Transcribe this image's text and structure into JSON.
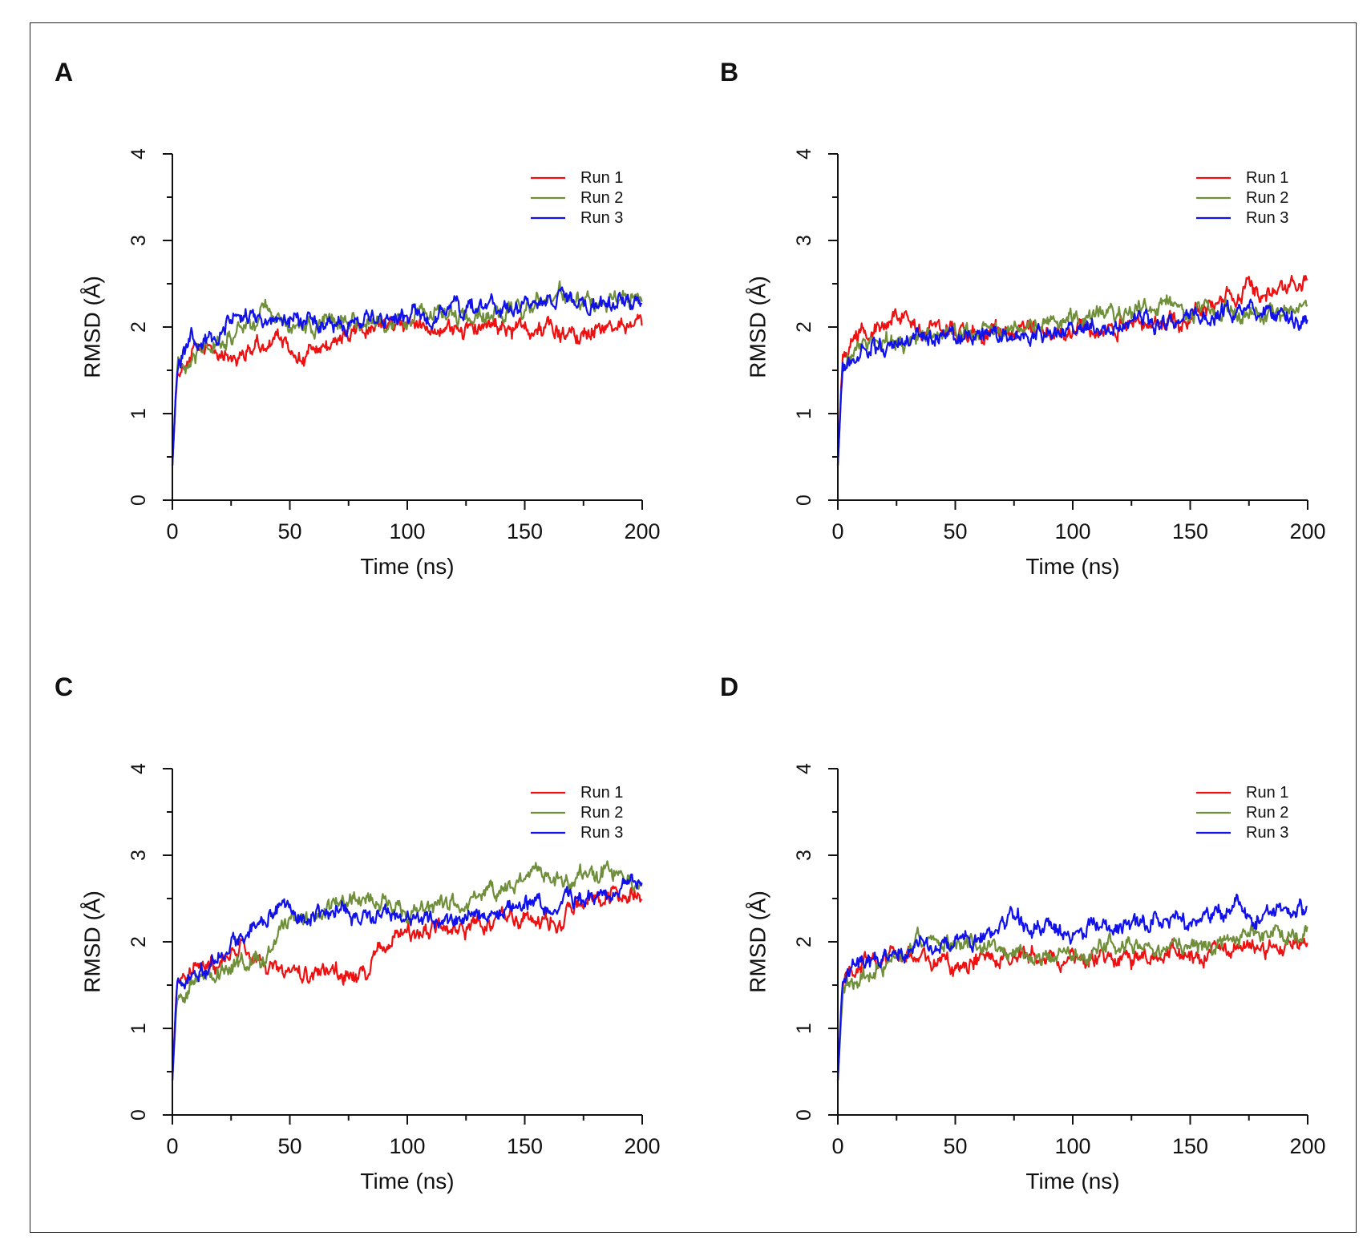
{
  "chart_data": [
    {
      "panel_label": "A",
      "type": "line",
      "xlabel": "Time (ns)",
      "ylabel": "RMSD (Å)",
      "xlim": [
        0,
        200
      ],
      "ylim": [
        0,
        4
      ],
      "xticks": [
        "0",
        "50",
        "100",
        "150",
        "200"
      ],
      "yticks": [
        "0",
        "1",
        "2",
        "3",
        "4"
      ],
      "legend_position": "top-right",
      "series": [
        {
          "name": "Run 1",
          "color": "#ee1111",
          "x": [
            0,
            2,
            5,
            10,
            15,
            20,
            25,
            30,
            35,
            40,
            45,
            50,
            55,
            60,
            65,
            70,
            75,
            80,
            90,
            100,
            110,
            120,
            130,
            140,
            150,
            160,
            170,
            180,
            190,
            200
          ],
          "y": [
            0.4,
            1.5,
            1.6,
            1.7,
            1.75,
            1.72,
            1.68,
            1.7,
            1.78,
            1.8,
            1.85,
            1.75,
            1.65,
            1.7,
            1.78,
            1.85,
            1.9,
            1.95,
            2.0,
            2.02,
            2.0,
            1.98,
            2.0,
            1.98,
            2.0,
            2.0,
            1.9,
            1.98,
            2.02,
            1.98
          ]
        },
        {
          "name": "Run 2",
          "color": "#6f8f3a",
          "x": [
            0,
            2,
            5,
            10,
            15,
            20,
            25,
            30,
            35,
            40,
            45,
            50,
            55,
            60,
            65,
            70,
            80,
            90,
            100,
            110,
            120,
            130,
            140,
            150,
            160,
            165,
            170,
            180,
            190,
            200
          ],
          "y": [
            0.4,
            1.55,
            1.65,
            1.75,
            1.82,
            1.85,
            1.9,
            1.95,
            2.05,
            2.2,
            2.1,
            1.95,
            1.98,
            2.0,
            2.05,
            2.1,
            2.05,
            2.05,
            2.1,
            2.12,
            2.1,
            2.15,
            2.2,
            2.25,
            2.3,
            2.45,
            2.3,
            2.3,
            2.35,
            2.32
          ]
        },
        {
          "name": "Run 3",
          "color": "#1111ee",
          "x": [
            0,
            2,
            5,
            8,
            10,
            15,
            20,
            25,
            30,
            40,
            50,
            60,
            70,
            80,
            90,
            100,
            110,
            120,
            130,
            140,
            150,
            160,
            165,
            170,
            180,
            190,
            200
          ],
          "y": [
            0.4,
            1.55,
            1.7,
            1.95,
            1.8,
            1.85,
            1.95,
            2.05,
            2.1,
            2.08,
            2.12,
            2.05,
            2.02,
            2.05,
            2.08,
            2.12,
            2.15,
            2.22,
            2.2,
            2.18,
            2.25,
            2.3,
            2.38,
            2.28,
            2.25,
            2.28,
            2.28
          ]
        }
      ]
    },
    {
      "panel_label": "B",
      "type": "line",
      "xlabel": "Time (ns)",
      "ylabel": "RMSD (Å)",
      "xlim": [
        0,
        200
      ],
      "ylim": [
        0,
        4
      ],
      "xticks": [
        "0",
        "50",
        "100",
        "150",
        "200"
      ],
      "yticks": [
        "0",
        "1",
        "2",
        "3",
        "4"
      ],
      "legend_position": "top-right",
      "series": [
        {
          "name": "Run 1",
          "color": "#ee1111",
          "x": [
            0,
            2,
            5,
            10,
            15,
            20,
            25,
            30,
            35,
            40,
            50,
            60,
            70,
            80,
            90,
            100,
            110,
            120,
            130,
            140,
            150,
            160,
            170,
            175,
            180,
            190,
            200
          ],
          "y": [
            0.4,
            1.7,
            1.85,
            1.95,
            1.98,
            2.05,
            2.15,
            2.05,
            1.95,
            2.0,
            1.95,
            1.92,
            1.95,
            1.98,
            1.92,
            1.95,
            2.0,
            2.02,
            2.05,
            2.02,
            2.1,
            2.3,
            2.4,
            2.5,
            2.35,
            2.45,
            2.55
          ]
        },
        {
          "name": "Run 2",
          "color": "#6f8f3a",
          "x": [
            0,
            2,
            5,
            10,
            20,
            30,
            40,
            50,
            60,
            70,
            80,
            90,
            100,
            110,
            120,
            130,
            140,
            145,
            150,
            160,
            170,
            180,
            190,
            200
          ],
          "y": [
            0.4,
            1.6,
            1.7,
            1.8,
            1.85,
            1.82,
            1.88,
            1.92,
            1.95,
            1.98,
            1.98,
            2.1,
            2.1,
            2.12,
            2.15,
            2.2,
            2.25,
            2.35,
            2.2,
            2.18,
            2.15,
            2.12,
            2.18,
            2.25
          ]
        },
        {
          "name": "Run 3",
          "color": "#1111ee",
          "x": [
            0,
            2,
            5,
            10,
            20,
            30,
            40,
            50,
            60,
            70,
            80,
            90,
            100,
            110,
            120,
            130,
            140,
            150,
            160,
            170,
            180,
            190,
            200
          ],
          "y": [
            0.4,
            1.6,
            1.62,
            1.7,
            1.78,
            1.82,
            1.85,
            1.9,
            1.9,
            1.92,
            1.88,
            1.95,
            1.98,
            2.0,
            2.02,
            2.05,
            2.08,
            2.1,
            2.15,
            2.18,
            2.2,
            2.12,
            2.08
          ]
        }
      ]
    },
    {
      "panel_label": "C",
      "type": "line",
      "xlabel": "Time (ns)",
      "ylabel": "RMSD (Å)",
      "xlim": [
        0,
        200
      ],
      "ylim": [
        0,
        4
      ],
      "xticks": [
        "0",
        "50",
        "100",
        "150",
        "200"
      ],
      "yticks": [
        "0",
        "1",
        "2",
        "3",
        "4"
      ],
      "legend_position": "top-right",
      "series": [
        {
          "name": "Run 1",
          "color": "#ee1111",
          "x": [
            0,
            2,
            5,
            10,
            15,
            20,
            25,
            30,
            35,
            40,
            45,
            50,
            55,
            60,
            65,
            70,
            75,
            80,
            85,
            90,
            95,
            100,
            110,
            120,
            130,
            140,
            150,
            160,
            165,
            170,
            180,
            190,
            200
          ],
          "y": [
            0.4,
            1.6,
            1.65,
            1.7,
            1.75,
            1.8,
            1.85,
            1.9,
            1.85,
            1.7,
            1.65,
            1.65,
            1.6,
            1.6,
            1.62,
            1.65,
            1.6,
            1.6,
            1.75,
            1.95,
            2.05,
            2.1,
            2.15,
            2.1,
            2.2,
            2.3,
            2.25,
            2.2,
            2.15,
            2.45,
            2.55,
            2.6,
            2.55
          ]
        },
        {
          "name": "Run 2",
          "color": "#6f8f3a",
          "x": [
            0,
            2,
            5,
            10,
            15,
            20,
            25,
            30,
            35,
            40,
            45,
            50,
            60,
            70,
            80,
            90,
            100,
            110,
            120,
            130,
            140,
            150,
            155,
            160,
            170,
            180,
            190,
            200
          ],
          "y": [
            0.4,
            1.4,
            1.45,
            1.55,
            1.6,
            1.65,
            1.7,
            1.72,
            1.75,
            1.85,
            2.1,
            2.25,
            2.3,
            2.4,
            2.45,
            2.45,
            2.35,
            2.4,
            2.45,
            2.55,
            2.6,
            2.7,
            2.8,
            2.75,
            2.7,
            2.75,
            2.8,
            2.65
          ]
        },
        {
          "name": "Run 3",
          "color": "#1111ee",
          "x": [
            0,
            2,
            5,
            10,
            15,
            20,
            25,
            30,
            35,
            40,
            45,
            50,
            60,
            70,
            80,
            90,
            100,
            110,
            120,
            130,
            140,
            150,
            160,
            170,
            180,
            190,
            195,
            200
          ],
          "y": [
            0.4,
            1.55,
            1.6,
            1.65,
            1.7,
            1.85,
            1.95,
            2.05,
            2.15,
            2.3,
            2.45,
            2.35,
            2.3,
            2.35,
            2.3,
            2.3,
            2.25,
            2.3,
            2.2,
            2.3,
            2.35,
            2.4,
            2.4,
            2.45,
            2.5,
            2.6,
            2.85,
            2.7
          ]
        }
      ]
    },
    {
      "panel_label": "D",
      "type": "line",
      "xlabel": "Time (ns)",
      "ylabel": "RMSD (Å)",
      "xlim": [
        0,
        200
      ],
      "ylim": [
        0,
        4
      ],
      "xticks": [
        "0",
        "50",
        "100",
        "150",
        "200"
      ],
      "yticks": [
        "0",
        "1",
        "2",
        "3",
        "4"
      ],
      "legend_position": "top-right",
      "series": [
        {
          "name": "Run 1",
          "color": "#ee1111",
          "x": [
            0,
            2,
            5,
            10,
            20,
            30,
            40,
            50,
            60,
            70,
            80,
            90,
            100,
            110,
            120,
            130,
            140,
            150,
            160,
            170,
            180,
            190,
            200
          ],
          "y": [
            0.4,
            1.55,
            1.65,
            1.72,
            1.8,
            1.82,
            1.78,
            1.75,
            1.8,
            1.85,
            1.82,
            1.8,
            1.85,
            1.82,
            1.8,
            1.82,
            1.85,
            1.82,
            1.88,
            1.92,
            1.9,
            1.95,
            2.02
          ]
        },
        {
          "name": "Run 2",
          "color": "#6f8f3a",
          "x": [
            0,
            2,
            5,
            10,
            20,
            30,
            35,
            40,
            50,
            60,
            70,
            80,
            90,
            100,
            110,
            120,
            130,
            140,
            150,
            160,
            170,
            180,
            190,
            200
          ],
          "y": [
            0.4,
            1.4,
            1.5,
            1.6,
            1.75,
            1.95,
            2.05,
            2.0,
            1.98,
            1.92,
            1.9,
            1.85,
            1.82,
            1.88,
            1.95,
            1.98,
            1.98,
            1.95,
            1.9,
            1.95,
            2.02,
            2.08,
            2.12,
            2.15
          ]
        },
        {
          "name": "Run 3",
          "color": "#1111ee",
          "x": [
            0,
            2,
            5,
            10,
            20,
            30,
            40,
            50,
            60,
            70,
            75,
            80,
            90,
            100,
            110,
            120,
            130,
            140,
            150,
            160,
            170,
            180,
            190,
            200
          ],
          "y": [
            0.4,
            1.6,
            1.65,
            1.75,
            1.85,
            1.92,
            1.95,
            2.0,
            2.05,
            2.2,
            2.3,
            2.2,
            2.15,
            2.05,
            2.2,
            2.15,
            2.2,
            2.3,
            2.25,
            2.3,
            2.4,
            2.3,
            2.35,
            2.38
          ]
        }
      ]
    }
  ]
}
